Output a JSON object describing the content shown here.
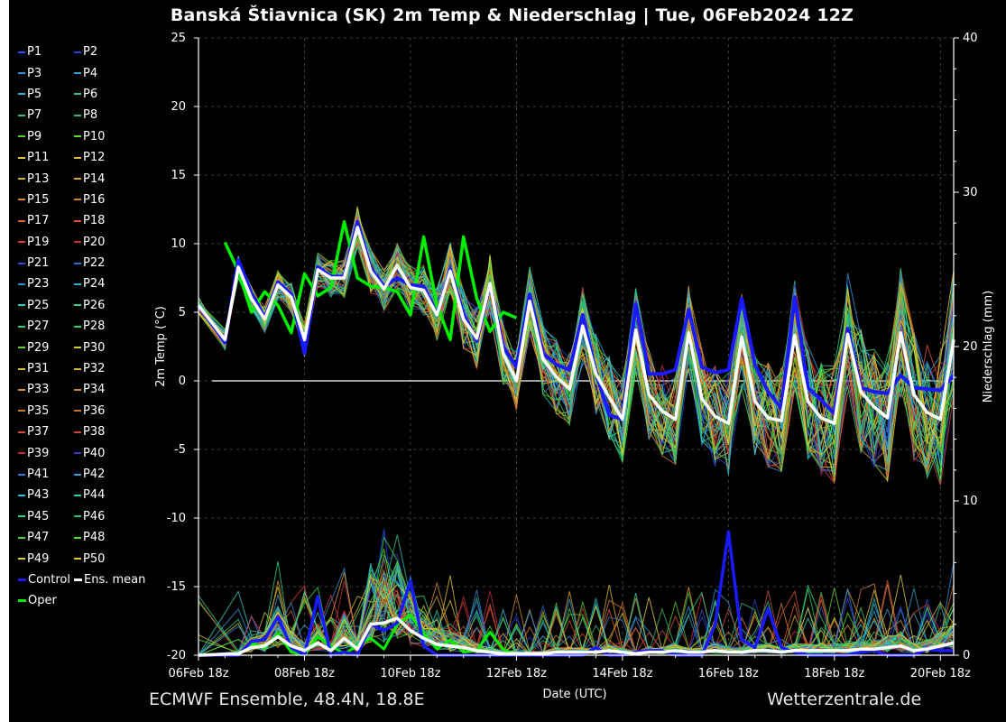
{
  "chart_data": {
    "type": "line",
    "title": "Banská Štiavnica  (SK)  2m Temp & Niederschlag | Tue, 06Feb2024 12Z",
    "xlabel": "Date (UTC)",
    "ylabel": "2m Temp (°C)",
    "y2label": "Niederschlag (mm)",
    "ylim": [
      -20,
      25
    ],
    "y2lim": [
      0,
      40
    ],
    "yticks": [
      25,
      20,
      15,
      10,
      5,
      0,
      -5,
      -10,
      -15,
      -20
    ],
    "y2ticks": [
      40,
      30,
      20,
      10,
      0
    ],
    "x_hours_start": 0,
    "x_hours_end": 342,
    "xticks": [
      {
        "hour": 0,
        "label": "06Feb 18z"
      },
      {
        "hour": 48,
        "label": "08Feb 18z"
      },
      {
        "hour": 96,
        "label": "10Feb 18z"
      },
      {
        "hour": 144,
        "label": "12Feb 18z"
      },
      {
        "hour": 192,
        "label": "14Feb 18z"
      },
      {
        "hour": 240,
        "label": "16Feb 18z"
      },
      {
        "hour": 288,
        "label": "18Feb 18z"
      },
      {
        "hour": 336,
        "label": "20Feb 18z"
      }
    ],
    "legend": [
      {
        "label": "P1",
        "color": "#1f4fff"
      },
      {
        "label": "P2",
        "color": "#1f3fcf"
      },
      {
        "label": "P3",
        "color": "#2f8fd8"
      },
      {
        "label": "P4",
        "color": "#2f9fcf"
      },
      {
        "label": "P5",
        "color": "#2fb8d8"
      },
      {
        "label": "P6",
        "color": "#2fbf9f"
      },
      {
        "label": "P7",
        "color": "#2fbf8f"
      },
      {
        "label": "P8",
        "color": "#2fbf5f"
      },
      {
        "label": "P9",
        "color": "#4fcf2f"
      },
      {
        "label": "P10",
        "color": "#5fdf1f"
      },
      {
        "label": "P11",
        "color": "#d8c82f"
      },
      {
        "label": "P12",
        "color": "#d8bf2f"
      },
      {
        "label": "P13",
        "color": "#d8b02f"
      },
      {
        "label": "P14",
        "color": "#d8a02f"
      },
      {
        "label": "P15",
        "color": "#d8902f"
      },
      {
        "label": "P16",
        "color": "#d8802f"
      },
      {
        "label": "P17",
        "color": "#d8602f"
      },
      {
        "label": "P18",
        "color": "#d8502f"
      },
      {
        "label": "P19",
        "color": "#d83f2f"
      },
      {
        "label": "P20",
        "color": "#c82f2f"
      },
      {
        "label": "P21",
        "color": "#2f4fcf"
      },
      {
        "label": "P22",
        "color": "#2f6fcf"
      },
      {
        "label": "P23",
        "color": "#2f8fcf"
      },
      {
        "label": "P24",
        "color": "#2fafcf"
      },
      {
        "label": "P25",
        "color": "#2fcfbf"
      },
      {
        "label": "P26",
        "color": "#2fcf9f"
      },
      {
        "label": "P27",
        "color": "#2fcf7f"
      },
      {
        "label": "P28",
        "color": "#2fcf5f"
      },
      {
        "label": "P29",
        "color": "#5fcf2f"
      },
      {
        "label": "P30",
        "color": "#cfc82f"
      },
      {
        "label": "P31",
        "color": "#cfbf2f"
      },
      {
        "label": "P32",
        "color": "#cfaf2f"
      },
      {
        "label": "P33",
        "color": "#cf9f2f"
      },
      {
        "label": "P34",
        "color": "#cf8f2f"
      },
      {
        "label": "P35",
        "color": "#cf7f2f"
      },
      {
        "label": "P36",
        "color": "#cf6f2f"
      },
      {
        "label": "P37",
        "color": "#cf4f3f"
      },
      {
        "label": "P38",
        "color": "#cf3f3f"
      },
      {
        "label": "P39",
        "color": "#bf2f3f"
      },
      {
        "label": "P40",
        "color": "#2f3fbf"
      },
      {
        "label": "P41",
        "color": "#2f7fdf"
      },
      {
        "label": "P42",
        "color": "#2f9fdf"
      },
      {
        "label": "P43",
        "color": "#2fbfdf"
      },
      {
        "label": "P44",
        "color": "#2fcfaf"
      },
      {
        "label": "P45",
        "color": "#2fcf8f"
      },
      {
        "label": "P46",
        "color": "#2fbf6f"
      },
      {
        "label": "P47",
        "color": "#3fcf3f"
      },
      {
        "label": "P48",
        "color": "#4fdf2f"
      },
      {
        "label": "P49",
        "color": "#dfd02f"
      },
      {
        "label": "P50",
        "color": "#dfc02f"
      },
      {
        "label": "Control",
        "color": "#1a1aff",
        "thick": true
      },
      {
        "label": "Ens. mean",
        "color": "#ffffff",
        "thick": true
      },
      {
        "label": "Oper",
        "color": "#00ee00",
        "thick": true
      }
    ],
    "mean_temp": {
      "hours": [
        0,
        12,
        18,
        24,
        30,
        36,
        42,
        48,
        54,
        60,
        66,
        72,
        78,
        84,
        90,
        96,
        102,
        108,
        114,
        120,
        126,
        132,
        138,
        144,
        150,
        156,
        162,
        168,
        174,
        180,
        186,
        192,
        198,
        204,
        210,
        216,
        222,
        228,
        234,
        240,
        246,
        252,
        258,
        264,
        270,
        276,
        282,
        288,
        294,
        300,
        306,
        312,
        318,
        324,
        330,
        336,
        342
      ],
      "values": [
        5.5,
        3,
        8.3,
        6,
        4.5,
        7,
        6.1,
        3,
        8.1,
        7.5,
        7.5,
        11.2,
        8,
        6.7,
        8.4,
        6.8,
        6.6,
        4.8,
        8,
        4.5,
        3.1,
        7.1,
        2,
        0,
        5.8,
        1.6,
        0.3,
        -0.6,
        4,
        0.5,
        -1.2,
        -2.8,
        3.7,
        -1,
        -2.2,
        -2.8,
        3.5,
        -1.3,
        -2.6,
        -3.1,
        3.2,
        -1.5,
        -2.7,
        -2.9,
        3.3,
        -1.5,
        -2.7,
        -3.1,
        3.4,
        -0.8,
        -1.9,
        -2.7,
        3.5,
        -1,
        -2.3,
        -2.8,
        3
      ]
    },
    "control_temp": {
      "hours": [
        0,
        12,
        18,
        24,
        30,
        36,
        42,
        48,
        54,
        60,
        66,
        72,
        78,
        84,
        90,
        96,
        102,
        108,
        114,
        120,
        126,
        132,
        138,
        144,
        150,
        156,
        162,
        168,
        174,
        180,
        186,
        192,
        198,
        204,
        210,
        216,
        222,
        228,
        234,
        240,
        246,
        252,
        258,
        264,
        270,
        276,
        282,
        288,
        294,
        300,
        306,
        312,
        318,
        324,
        330,
        336,
        342
      ],
      "values": [
        5.5,
        2.8,
        8.8,
        6.4,
        4.6,
        7.2,
        6.3,
        2,
        8.3,
        7.6,
        7.6,
        11.6,
        8.2,
        6.9,
        7.5,
        7,
        6.9,
        4.8,
        8.1,
        4.9,
        2.9,
        7,
        2.5,
        1,
        6.3,
        2,
        1.2,
        0.8,
        4.8,
        0.6,
        -2.5,
        -2.8,
        5.6,
        0.5,
        0.5,
        0.8,
        5.2,
        1,
        0.6,
        0.8,
        6,
        1.2,
        -0.8,
        -2,
        6.1,
        -0.5,
        -1.4,
        -2.4,
        3.8,
        -0.5,
        -0.8,
        -0.9,
        0.4,
        -0.5,
        -0.6,
        -0.7,
        0.4
      ]
    },
    "oper_temp": {
      "hours": [
        12,
        18,
        24,
        30,
        36,
        42,
        48,
        54,
        60,
        66,
        72,
        78,
        84,
        90,
        96,
        102,
        108,
        114,
        120,
        126,
        132,
        138,
        144
      ],
      "values": [
        10.1,
        8,
        5,
        6.5,
        5.5,
        3.5,
        7.8,
        6.2,
        6.8,
        11.6,
        7.5,
        6.9,
        6.8,
        6.5,
        4.8,
        10.5,
        5.5,
        3,
        10.5,
        6,
        3.6,
        5,
        4.6
      ]
    },
    "mean_precip": {
      "hours": [
        0,
        18,
        24,
        30,
        36,
        42,
        48,
        54,
        60,
        66,
        72,
        78,
        84,
        90,
        96,
        102,
        108,
        114,
        120,
        126,
        132,
        138,
        144,
        150,
        156,
        162,
        168,
        174,
        180,
        186,
        192,
        198,
        204,
        210,
        216,
        222,
        228,
        234,
        240,
        246,
        252,
        258,
        264,
        270,
        276,
        282,
        288,
        294,
        300,
        306,
        312,
        318,
        324,
        330,
        336,
        342
      ],
      "values": [
        0,
        0.1,
        0.5,
        0.6,
        1.2,
        0.6,
        0.3,
        0.8,
        0.3,
        1.1,
        0.4,
        2,
        2.1,
        2.4,
        1.6,
        1.1,
        0.7,
        0.6,
        0.5,
        0.3,
        0.2,
        0.1,
        0.1,
        0.1,
        0.1,
        0.2,
        0.2,
        0.2,
        0.2,
        0.3,
        0.2,
        0.1,
        0.2,
        0.2,
        0.3,
        0.2,
        0.2,
        0.3,
        0.2,
        0.2,
        0.3,
        0.3,
        0.2,
        0.3,
        0.3,
        0.3,
        0.3,
        0.3,
        0.4,
        0.4,
        0.5,
        0.6,
        0.3,
        0.4,
        0.6,
        0.8
      ]
    },
    "control_precip": {
      "hours": [
        0,
        18,
        24,
        30,
        36,
        42,
        48,
        54,
        60,
        66,
        72,
        78,
        84,
        90,
        96,
        102,
        108,
        114,
        120,
        126,
        132,
        138,
        144,
        150,
        156,
        162,
        168,
        174,
        180,
        186,
        192,
        198,
        204,
        210,
        216,
        222,
        228,
        234,
        240,
        246,
        252,
        258,
        264,
        270,
        276,
        282,
        288,
        294,
        300,
        306,
        312,
        318,
        324,
        330,
        336,
        342
      ],
      "values": [
        0,
        0,
        0.9,
        1,
        2.5,
        0.5,
        0,
        3.8,
        0,
        0.2,
        0,
        2,
        1.6,
        2.1,
        4.8,
        0.6,
        0,
        0,
        0,
        0,
        0,
        0,
        0,
        0,
        0,
        0,
        0,
        0,
        0.5,
        0,
        0,
        0.2,
        0.3,
        0.3,
        0,
        0,
        0,
        2,
        8,
        1,
        0.5,
        3,
        0.5,
        0.2,
        0,
        0,
        0,
        0,
        0.2,
        0.3,
        0,
        0,
        0,
        0.4,
        0.3,
        0.3
      ]
    },
    "oper_precip": {
      "hours": [
        0,
        18,
        24,
        30,
        36,
        42,
        48,
        54,
        60,
        66,
        72,
        78,
        84,
        90,
        96,
        102,
        108,
        114,
        120,
        126,
        132,
        138,
        144
      ],
      "values": [
        0,
        0,
        0.8,
        0.5,
        1.4,
        0.2,
        0,
        1.2,
        0.6,
        0.1,
        0.6,
        1.1,
        0.4,
        2,
        2.6,
        1.4,
        0.4,
        1,
        0.2,
        0.3,
        1.5,
        0.4,
        0
      ]
    }
  },
  "footer": {
    "left": "ECMWF Ensemble, 48.4N, 18.8E",
    "right": "Wetterzentrale.de"
  }
}
